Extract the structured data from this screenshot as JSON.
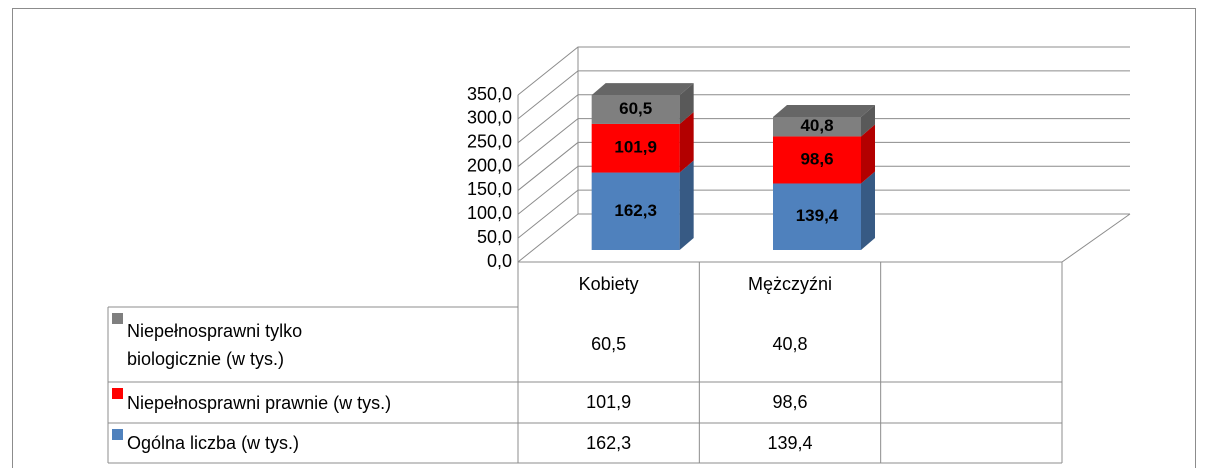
{
  "chart_data": {
    "type": "bar",
    "stacked": true,
    "categories": [
      "Kobiety",
      "Mężczyźni"
    ],
    "series": [
      {
        "name": "Ogólna liczba (w tys.)",
        "color": "#4f81bd",
        "values": [
          162.3,
          139.4
        ],
        "value_labels": [
          "162,3",
          "139,4"
        ]
      },
      {
        "name": "Niepełnosprawni prawnie (w tys.)",
        "color": "#ff0000",
        "values": [
          101.9,
          98.6
        ],
        "value_labels": [
          "101,9",
          "98,6"
        ]
      },
      {
        "name": "Niepełnosprawni tylko biologicznie (w tys.)",
        "color": "#7f7f7f",
        "values": [
          60.5,
          40.8
        ],
        "value_labels": [
          "60,5",
          "40,8"
        ]
      }
    ],
    "ylim": [
      0,
      350
    ],
    "yticks": [
      {
        "value": 0,
        "label": "0,0"
      },
      {
        "value": 50,
        "label": "50,0"
      },
      {
        "value": 100,
        "label": "100,0"
      },
      {
        "value": 150,
        "label": "150,0"
      },
      {
        "value": 200,
        "label": "200,0"
      },
      {
        "value": 250,
        "label": "250,0"
      },
      {
        "value": 300,
        "label": "300,0"
      },
      {
        "value": 350,
        "label": "350,0"
      }
    ],
    "grid": true,
    "data_table": true
  }
}
